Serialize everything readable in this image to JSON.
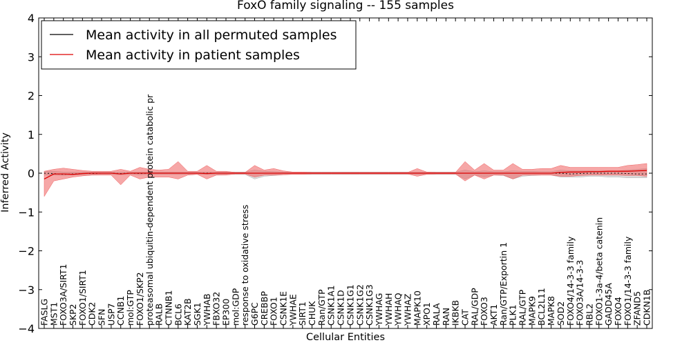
{
  "chart_data": {
    "type": "line",
    "title": "FoxO family signaling -- 155 samples",
    "xlabel": "Cellular Entities",
    "ylabel": "Inferred Activity",
    "ylim": [
      -4,
      4
    ],
    "yticks": [
      -4,
      -3,
      -2,
      -1,
      0,
      1,
      2,
      3,
      4
    ],
    "ytick_labels": [
      "−4",
      "−3",
      "−2",
      "−1",
      "0",
      "1",
      "2",
      "3",
      "4"
    ],
    "legend_position": "top-left",
    "categories": [
      "FASLG",
      "MST1",
      "FOXO3A/SIRT1",
      "SKP2",
      "FOXO1/SIRT1",
      "CDK2",
      "SFN",
      "USP7",
      "CCNB1",
      "mol:GTP",
      "FOXO1/SKP2",
      "proteasomal ubiquitin-dependent protein catabolic pr",
      "RALB",
      "CTNNB1",
      "BCL6",
      "KAT2B",
      "SGK1",
      "YWHAB",
      "FBXO32",
      "EP300",
      "mol:GDP",
      "response to oxidative stress",
      "G6PC",
      "CREBBP",
      "FOXO1",
      "CSNK1E",
      "YWHAE",
      "SIRT1",
      "CHUK",
      "Ran/GTP",
      "CSNK1A1",
      "CSNK1D",
      "CSNK1G1",
      "CSNK1G2",
      "CSNK1G3",
      "YWHAG",
      "YWHAH",
      "YWHAQ",
      "YWHAZ",
      "MAPK10",
      "XPO1",
      "RALA",
      "RAN",
      "IKBKB",
      "CAT",
      "RAL/GDP",
      "FOXO3",
      "AKT1",
      "Ran/GTP/Exportin 1",
      "PLK1",
      "RAL/GTP",
      "MAPK9",
      "BCL2L11",
      "MAPK8",
      "SOD2",
      "FOXO4/14-3-3 family",
      "FOXO3A/14-3-3",
      "RBL2",
      "FOXO1-3a-4/beta catenin",
      "GADD45A",
      "FOXO4",
      "FOXO1/14-3-3 family",
      "ZFAND5",
      "CDKN1B"
    ],
    "series": [
      {
        "name": "Mean activity in all permuted samples",
        "color": "#000000",
        "band_color": "#b0b0b0",
        "values": [
          0.0,
          -0.01,
          -0.03,
          -0.02,
          -0.01,
          -0.01,
          0.0,
          0.0,
          -0.01,
          0.0,
          -0.01,
          0.0,
          0.0,
          0.0,
          0.0,
          0.0,
          0.0,
          0.0,
          0.0,
          0.0,
          0.0,
          0.0,
          0.0,
          0.0,
          0.0,
          0.0,
          0.0,
          0.0,
          0.0,
          0.0,
          0.0,
          0.0,
          0.0,
          0.0,
          0.0,
          0.0,
          0.0,
          0.0,
          0.0,
          0.0,
          0.0,
          0.0,
          0.0,
          0.0,
          0.0,
          0.0,
          0.0,
          0.0,
          0.0,
          0.0,
          0.0,
          0.0,
          0.0,
          0.0,
          0.0,
          -0.02,
          -0.01,
          0.0,
          0.0,
          0.0,
          0.0,
          -0.01,
          -0.02,
          -0.02
        ],
        "lower": [
          -0.05,
          -0.05,
          -0.06,
          -0.05,
          -0.04,
          -0.04,
          -0.03,
          -0.03,
          -0.04,
          -0.03,
          -0.04,
          -0.03,
          -0.03,
          -0.03,
          -0.03,
          -0.03,
          -0.03,
          -0.03,
          -0.04,
          -0.03,
          -0.03,
          -0.03,
          -0.15,
          -0.08,
          -0.06,
          -0.04,
          -0.03,
          -0.03,
          -0.03,
          -0.03,
          -0.03,
          -0.03,
          -0.03,
          -0.03,
          -0.03,
          -0.03,
          -0.03,
          -0.03,
          -0.03,
          -0.03,
          -0.03,
          -0.03,
          -0.03,
          -0.03,
          -0.15,
          -0.05,
          -0.1,
          -0.05,
          -0.06,
          -0.15,
          -0.08,
          -0.06,
          -0.05,
          -0.05,
          -0.1,
          -0.1,
          -0.1,
          -0.08,
          -0.08,
          -0.1,
          -0.1,
          -0.12,
          -0.12,
          -0.12
        ],
        "upper": [
          0.05,
          0.05,
          0.03,
          0.03,
          0.03,
          0.03,
          0.03,
          0.03,
          0.03,
          0.03,
          0.03,
          0.03,
          0.03,
          0.03,
          0.03,
          0.03,
          0.03,
          0.03,
          0.03,
          0.03,
          0.03,
          0.03,
          0.08,
          0.05,
          0.04,
          0.03,
          0.03,
          0.03,
          0.03,
          0.03,
          0.03,
          0.03,
          0.03,
          0.03,
          0.03,
          0.03,
          0.03,
          0.03,
          0.03,
          0.03,
          0.03,
          0.03,
          0.03,
          0.03,
          0.08,
          0.04,
          0.06,
          0.04,
          0.04,
          0.06,
          0.05,
          0.05,
          0.04,
          0.04,
          0.08,
          0.06,
          0.06,
          0.06,
          0.06,
          0.06,
          0.06,
          0.08,
          0.1,
          0.12
        ]
      },
      {
        "name": "Mean activity in patient samples",
        "color": "#dd0000",
        "band_color": "#ef5f5f",
        "values": [
          -0.15,
          -0.02,
          -0.02,
          -0.03,
          -0.01,
          0.0,
          0.0,
          0.0,
          -0.02,
          0.0,
          0.0,
          0.0,
          0.0,
          0.0,
          0.0,
          0.0,
          0.0,
          -0.01,
          0.0,
          0.0,
          0.0,
          0.0,
          0.0,
          0.0,
          0.0,
          0.0,
          0.0,
          0.0,
          0.0,
          0.0,
          0.0,
          0.0,
          0.0,
          0.0,
          0.0,
          0.0,
          0.0,
          0.0,
          0.0,
          0.0,
          0.0,
          0.0,
          0.0,
          0.0,
          0.0,
          0.0,
          0.0,
          0.0,
          0.0,
          0.0,
          0.0,
          0.0,
          0.0,
          0.0,
          0.02,
          0.03,
          0.03,
          0.04,
          0.04,
          0.05,
          0.05,
          0.05,
          0.06,
          0.07
        ],
        "lower": [
          -0.6,
          -0.2,
          -0.15,
          -0.1,
          -0.07,
          -0.05,
          -0.05,
          -0.05,
          -0.3,
          -0.05,
          -0.15,
          -0.1,
          -0.1,
          -0.1,
          -0.15,
          -0.05,
          -0.03,
          -0.15,
          -0.05,
          -0.05,
          -0.02,
          -0.02,
          -0.1,
          -0.05,
          -0.05,
          -0.04,
          -0.03,
          -0.03,
          -0.02,
          -0.02,
          -0.02,
          -0.02,
          -0.02,
          -0.02,
          -0.02,
          -0.02,
          -0.02,
          -0.02,
          -0.02,
          -0.08,
          -0.03,
          -0.02,
          -0.02,
          -0.02,
          -0.2,
          -0.05,
          -0.15,
          -0.05,
          -0.05,
          -0.15,
          -0.05,
          -0.05,
          -0.05,
          -0.05,
          -0.08,
          -0.08,
          -0.06,
          -0.05,
          -0.05,
          -0.05,
          -0.05,
          -0.06,
          -0.06,
          -0.08
        ],
        "upper": [
          0.05,
          0.1,
          0.13,
          0.1,
          0.07,
          0.05,
          0.05,
          0.05,
          0.1,
          0.05,
          0.15,
          0.1,
          0.08,
          0.1,
          0.3,
          0.05,
          0.05,
          0.2,
          0.05,
          0.05,
          0.02,
          0.02,
          0.2,
          0.08,
          0.12,
          0.06,
          0.03,
          0.03,
          0.02,
          0.02,
          0.02,
          0.02,
          0.02,
          0.02,
          0.02,
          0.02,
          0.02,
          0.02,
          0.02,
          0.12,
          0.03,
          0.02,
          0.02,
          0.02,
          0.3,
          0.08,
          0.25,
          0.08,
          0.08,
          0.25,
          0.1,
          0.1,
          0.12,
          0.12,
          0.2,
          0.15,
          0.15,
          0.15,
          0.15,
          0.15,
          0.15,
          0.2,
          0.22,
          0.25
        ]
      }
    ]
  }
}
